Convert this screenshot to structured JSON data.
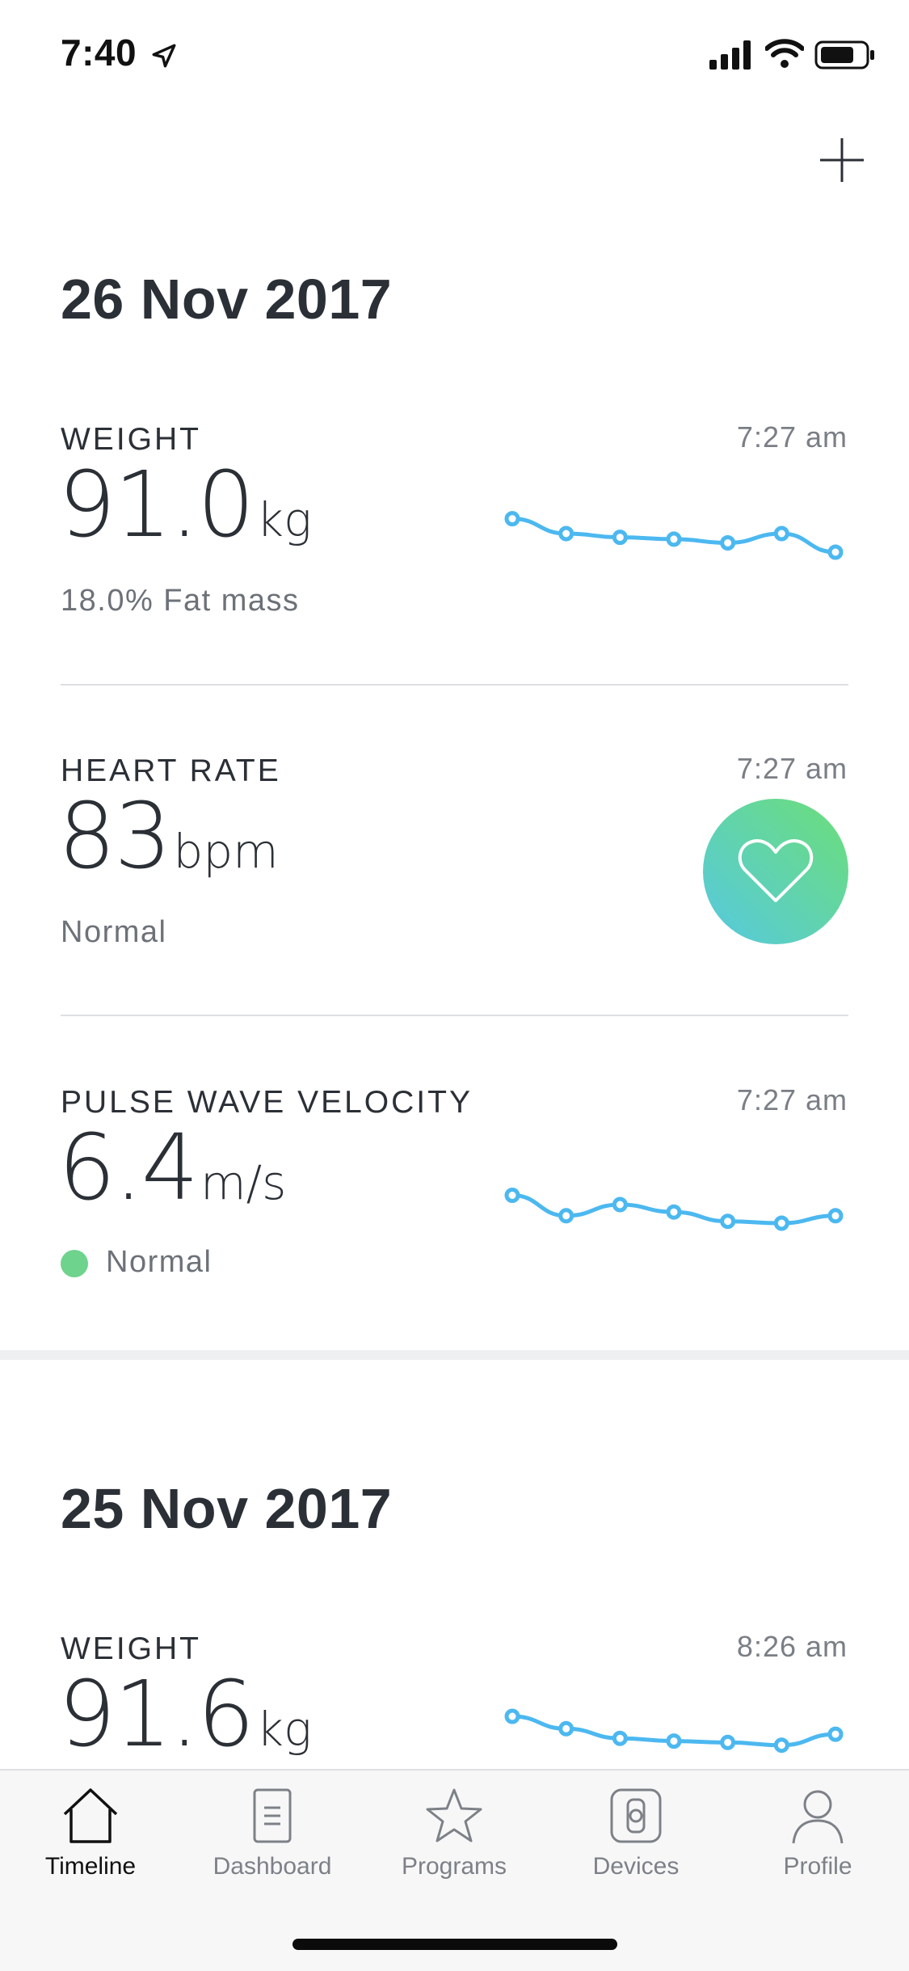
{
  "status_bar": {
    "time": "7:40"
  },
  "days": [
    {
      "date": "26 Nov 2017",
      "metrics": [
        {
          "label": "WEIGHT",
          "time": "7:27 am",
          "value": "91.0",
          "unit": "kg",
          "sub": "18.0% Fat mass",
          "trend": [
            52,
            60,
            62,
            63,
            65,
            60,
            70
          ]
        },
        {
          "label": "HEART RATE",
          "time": "7:27 am",
          "value": "83",
          "unit": "bpm",
          "sub": "Normal"
        },
        {
          "label": "PULSE WAVE VELOCITY",
          "time": "7:27 am",
          "value": "6.4",
          "unit": "m/s",
          "sub": "Normal",
          "status_color": "#6ed38d",
          "trend": [
            55,
            66,
            60,
            64,
            69,
            70,
            66
          ]
        }
      ]
    },
    {
      "date": "25 Nov 2017",
      "metrics": [
        {
          "label": "WEIGHT",
          "time": "8:26 am",
          "value": "91.6",
          "unit": "kg",
          "trend": [
            50,
            59,
            66,
            68,
            69,
            71,
            63
          ]
        }
      ]
    }
  ],
  "tabs": [
    {
      "label": "Timeline",
      "icon": "home-icon",
      "active": true
    },
    {
      "label": "Dashboard",
      "icon": "document-icon",
      "active": false
    },
    {
      "label": "Programs",
      "icon": "star-icon",
      "active": false
    },
    {
      "label": "Devices",
      "icon": "watch-icon",
      "active": false
    },
    {
      "label": "Profile",
      "icon": "person-icon",
      "active": false
    }
  ],
  "colors": {
    "accent": "#4cb8f0",
    "heart_gradient_start": "#56c9e0",
    "heart_gradient_end": "#6cde78",
    "status_normal": "#6ed38d"
  }
}
